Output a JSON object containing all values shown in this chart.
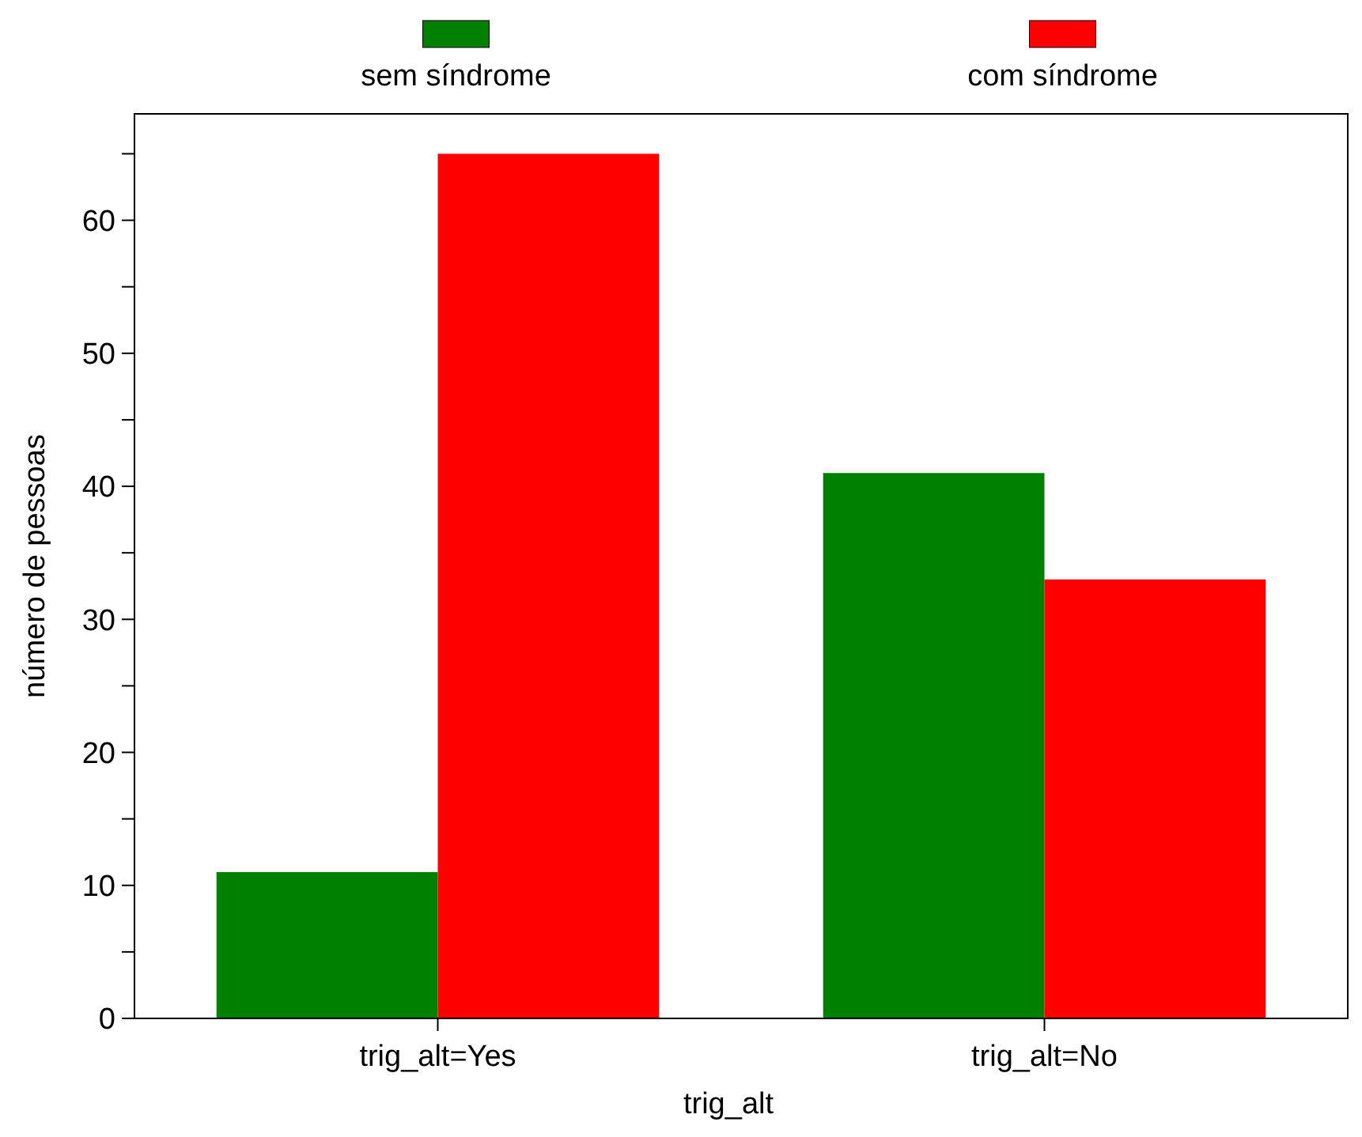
{
  "chart_data": {
    "type": "bar",
    "xlabel": "trig_alt",
    "ylabel": "número de pessoas",
    "categories": [
      "trig_alt=Yes",
      "trig_alt=No"
    ],
    "series": [
      {
        "name": "sem síndrome",
        "color": "#008000",
        "values": [
          11,
          41
        ]
      },
      {
        "name": "com síndrome",
        "color": "#ff0000",
        "values": [
          65,
          33
        ]
      }
    ],
    "ylim": [
      0,
      68
    ],
    "yticks": [
      0,
      {
        "value": 5,
        "label": null
      },
      10,
      {
        "value": 15,
        "label": null
      },
      20,
      {
        "value": 25,
        "label": null
      },
      30,
      {
        "value": 35,
        "label": null
      },
      40,
      {
        "value": 45,
        "label": null
      },
      50,
      {
        "value": 55,
        "label": null
      },
      60,
      {
        "value": 65,
        "label": null
      }
    ],
    "legend": "top",
    "grid": false
  }
}
